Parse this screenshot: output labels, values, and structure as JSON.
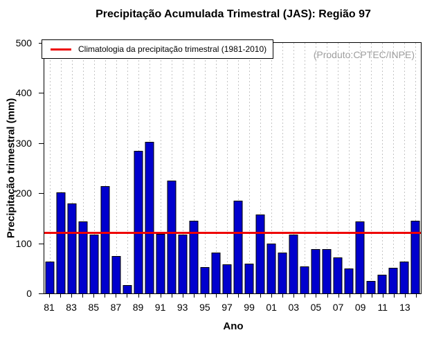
{
  "title": "Precipitação Acumulada Trimestral (JAS): Região 97",
  "produto_note": "(Produto:CPTEC/INPE)",
  "legend": {
    "label": "Climatologia da precipitação trimestral (1981-2010)"
  },
  "colors": {
    "bar": "#0000CD",
    "bar_border": "#000000",
    "climatology_line": "#EE0000",
    "grid": "#C4C4C4",
    "produto_text": "#9E9E9E"
  },
  "chart_data": {
    "type": "bar",
    "title": "Precipitação Acumulada Trimestral (JAS): Região 97",
    "xlabel": "Ano",
    "ylabel": "Precipitação trimestral (mm)",
    "ylim": [
      0,
      500
    ],
    "yticks": [
      0,
      100,
      200,
      300,
      400,
      500
    ],
    "grid": "vertical-dashed-per-year",
    "legend_position": "topleft",
    "categories": [
      "81",
      "82",
      "83",
      "84",
      "85",
      "86",
      "87",
      "88",
      "89",
      "90",
      "91",
      "92",
      "93",
      "94",
      "95",
      "96",
      "97",
      "98",
      "99",
      "00",
      "01",
      "02",
      "03",
      "04",
      "05",
      "06",
      "07",
      "08",
      "09",
      "10",
      "11",
      "12",
      "13",
      "14"
    ],
    "values": [
      63,
      202,
      179,
      144,
      118,
      214,
      75,
      16,
      284,
      303,
      119,
      225,
      117,
      145,
      53,
      81,
      58,
      185,
      59,
      158,
      100,
      81,
      117,
      54,
      88,
      88,
      72,
      50,
      144,
      25,
      37,
      51,
      64,
      145
    ],
    "xtick_labels": [
      "81",
      "83",
      "85",
      "87",
      "89",
      "91",
      "93",
      "95",
      "97",
      "99",
      "01",
      "03",
      "05",
      "07",
      "09",
      "11",
      "13"
    ],
    "climatology_value": 121,
    "climatology_label": "Climatologia da precipitação trimestral (1981-2010)"
  }
}
